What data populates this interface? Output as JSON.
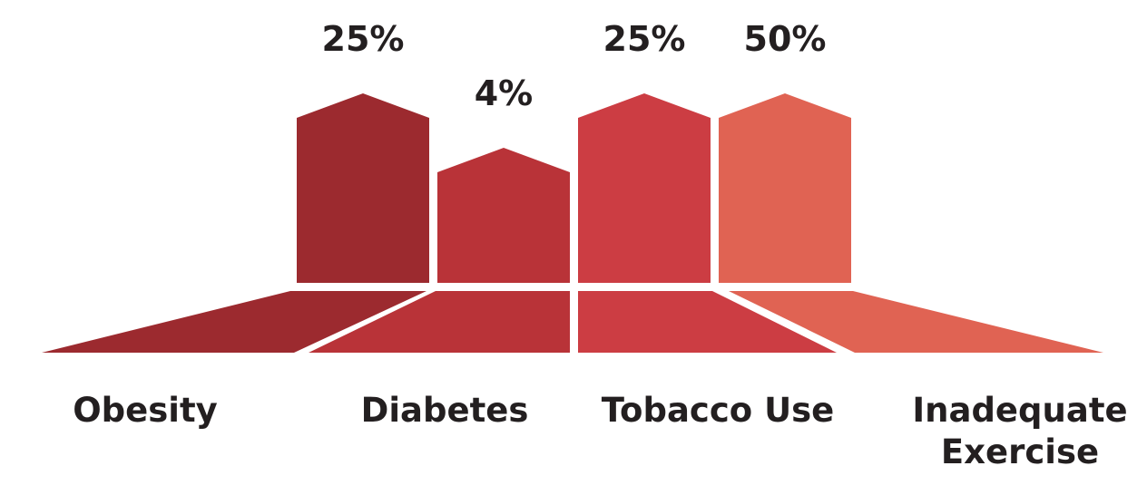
{
  "chart_data": {
    "type": "bar",
    "title": "",
    "xlabel": "",
    "ylabel": "",
    "ylim": [
      0,
      50
    ],
    "grid": false,
    "legend": "none",
    "categories": [
      {
        "lines": [
          "Obesity"
        ]
      },
      {
        "lines": [
          "Diabetes"
        ]
      },
      {
        "lines": [
          "Tobacco Use"
        ]
      },
      {
        "lines": [
          "Inadequate",
          "Exercise"
        ]
      }
    ],
    "values": [
      25,
      4,
      25,
      50
    ],
    "value_labels": [
      "25%",
      "4%",
      "25%",
      "50%"
    ],
    "colors": [
      "#9c2a2f",
      "#b93338",
      "#cc3d43",
      "#e06353"
    ]
  }
}
